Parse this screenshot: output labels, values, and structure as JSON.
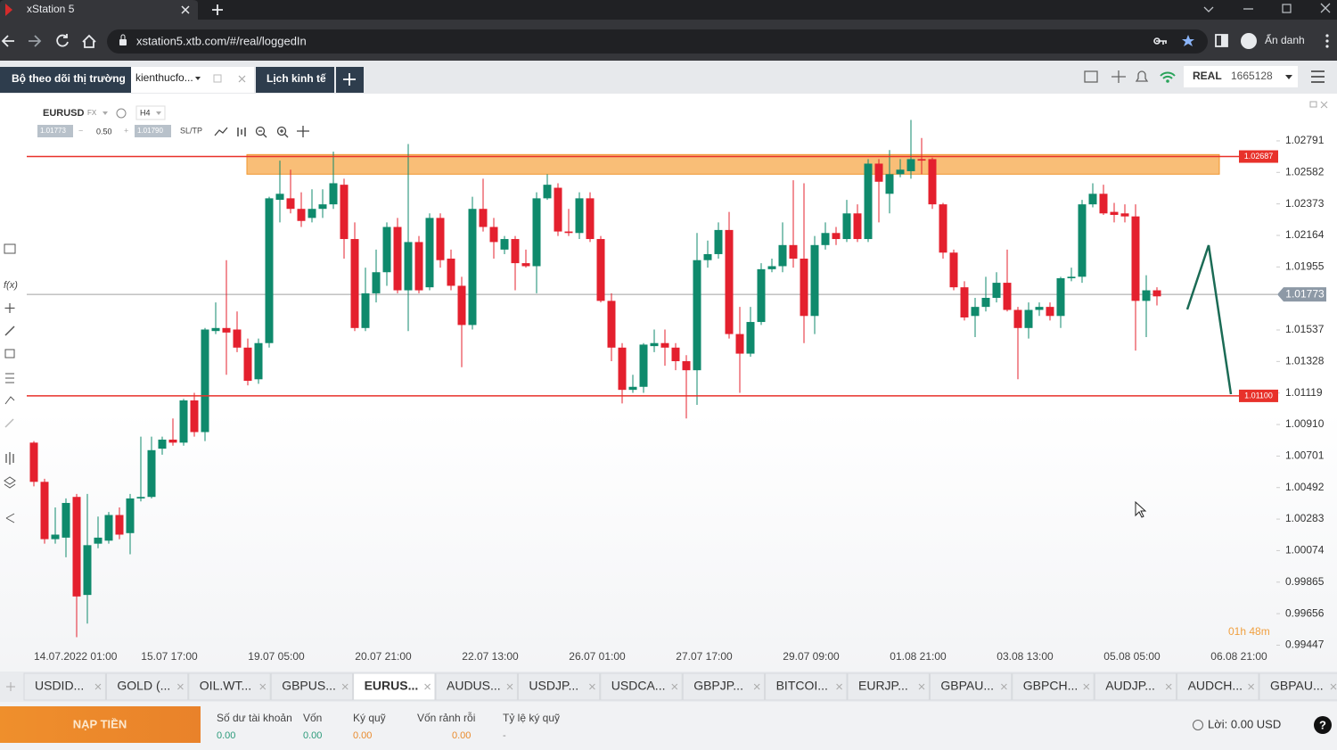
{
  "browser": {
    "tab_title": "xStation 5",
    "url": "xstation5.xtb.com/#/real/loggedIn",
    "profile": "Ẩn danh"
  },
  "app_tabs": [
    "Bộ theo dõi thị trường",
    "kienthucfo...",
    "Lịch kinh tế"
  ],
  "account": {
    "mode": "REAL",
    "number": "1665128"
  },
  "chart_header": {
    "symbol": "EURUSD",
    "market": "FX",
    "timeframe": "H4",
    "sell": "1.01773",
    "volume": "0.50",
    "buy": "1.01790",
    "sltp": "SL/TP"
  },
  "left_toolbar": {
    "fx": "f(x)"
  },
  "chart": {
    "type": "candlestick",
    "up_color": "#0f8a6c",
    "down_color": "#e4202e",
    "ylim": [
      0.9929,
      1.0311
    ],
    "yticks": [
      1.02791,
      1.02582,
      1.02373,
      1.02164,
      1.01955,
      1.01537,
      1.01328,
      1.01119,
      {
        "value": 1.0091,
        "label": "1.00910"
      },
      1.00701,
      1.00492,
      1.00283,
      1.00074,
      0.99865,
      0.99656,
      0.99447
    ],
    "x_labels": [
      "14.07.2022 01:00",
      "15.07 17:00",
      "19.07 05:00",
      "20.07 21:00",
      "22.07 13:00",
      "26.07 01:00",
      "27.07 17:00",
      "29.07 09:00",
      "01.08 21:00",
      "03.08 13:00",
      "05.08 05:00",
      "06.08 21:00"
    ],
    "resistance": 1.02687,
    "support": {
      "value": 1.011,
      "label": "1.01100"
    },
    "level_color": "#e8312a",
    "current_price": 1.01773,
    "zone": [
      1.0257,
      1.027
    ],
    "zone_color": "#f7a84a",
    "timer": "01h 48m",
    "candles": [
      [
        1.0079,
        1.008,
        1.005,
        1.0053
      ],
      [
        1.0053,
        1.0055,
        1.0012,
        1.0015
      ],
      [
        1.0015,
        1.0036,
        1.0012,
        1.0018
      ],
      [
        1.0016,
        1.0042,
        1.0003,
        1.0039
      ],
      [
        1.0043,
        1.0045,
        0.995,
        0.9977
      ],
      [
        0.9978,
        1.0045,
        0.9959,
        1.0011
      ],
      [
        1.0012,
        1.003,
        1.0009,
        1.0016
      ],
      [
        1.0014,
        1.0033,
        1.0012,
        1.0031
      ],
      [
        1.0031,
        1.0036,
        1.0015,
        1.0018
      ],
      [
        1.0019,
        1.0045,
        1.0005,
        1.0042
      ],
      [
        1.0042,
        1.0083,
        1.004,
        1.0043
      ],
      [
        1.0043,
        1.0083,
        1.0042,
        1.0074
      ],
      [
        1.0075,
        1.0083,
        1.0071,
        1.0081
      ],
      [
        1.0081,
        1.0095,
        1.0077,
        1.0079
      ],
      [
        1.0079,
        1.0108,
        1.0077,
        1.0107
      ],
      [
        1.0107,
        1.0112,
        1.0083,
        1.0086
      ],
      [
        1.0086,
        1.0155,
        1.008,
        1.0154
      ],
      [
        1.0153,
        1.0172,
        1.0151,
        1.0155
      ],
      [
        1.0155,
        1.02,
        1.0124,
        1.0152
      ],
      [
        1.0154,
        1.0166,
        1.0139,
        1.0142
      ],
      [
        1.0142,
        1.0148,
        1.0117,
        1.012
      ],
      [
        1.0121,
        1.0148,
        1.0118,
        1.0145
      ],
      [
        1.0145,
        1.0242,
        1.0142,
        1.0241
      ],
      [
        1.024,
        1.0266,
        1.0225,
        1.0244
      ],
      [
        1.0241,
        1.026,
        1.0231,
        1.0234
      ],
      [
        1.0234,
        1.0245,
        1.0222,
        1.0226
      ],
      [
        1.0228,
        1.0247,
        1.0225,
        1.0234
      ],
      [
        1.0234,
        1.0247,
        1.0228,
        1.0237
      ],
      [
        1.0237,
        1.0272,
        1.0234,
        1.0251
      ],
      [
        1.025,
        1.0254,
        1.0201,
        1.0214
      ],
      [
        1.0214,
        1.0225,
        1.0153,
        1.0155
      ],
      [
        1.0155,
        1.0195,
        1.0153,
        1.0178
      ],
      [
        1.0178,
        1.0207,
        1.0172,
        1.0192
      ],
      [
        1.0192,
        1.0225,
        1.0183,
        1.0222
      ],
      [
        1.0222,
        1.0228,
        1.0178,
        1.018
      ],
      [
        1.018,
        1.0277,
        1.0153,
        1.0212
      ],
      [
        1.0212,
        1.0216,
        1.0178,
        1.018
      ],
      [
        1.0182,
        1.0231,
        1.018,
        1.0228
      ],
      [
        1.0228,
        1.0231,
        1.0195,
        1.02
      ],
      [
        1.0201,
        1.0207,
        1.018,
        1.0183
      ],
      [
        1.0183,
        1.0189,
        1.0129,
        1.0157
      ],
      [
        1.0157,
        1.0242,
        1.0154,
        1.0234
      ],
      [
        1.0234,
        1.0254,
        1.0219,
        1.0222
      ],
      [
        1.0222,
        1.0228,
        1.0201,
        1.0212
      ],
      [
        1.0207,
        1.0216,
        1.0204,
        1.0214
      ],
      [
        1.0214,
        1.0216,
        1.018,
        1.0198
      ],
      [
        1.0198,
        1.0207,
        1.0195,
        1.0196
      ],
      [
        1.0196,
        1.0245,
        1.0178,
        1.0241
      ],
      [
        1.0241,
        1.0257,
        1.024,
        1.025
      ],
      [
        1.0248,
        1.0251,
        1.0216,
        1.0219
      ],
      [
        1.0219,
        1.0234,
        1.0216,
        1.0218
      ],
      [
        1.0218,
        1.0245,
        1.0214,
        1.0241
      ],
      [
        1.0241,
        1.0245,
        1.0212,
        1.0214
      ],
      [
        1.0214,
        1.0216,
        1.0172,
        1.0173
      ],
      [
        1.0173,
        1.0178,
        1.0133,
        1.0142
      ],
      [
        1.0142,
        1.0145,
        1.0105,
        1.0114
      ],
      [
        1.0114,
        1.0124,
        1.0112,
        1.0116
      ],
      [
        1.0116,
        1.0145,
        1.0112,
        1.0144
      ],
      [
        1.0143,
        1.0154,
        1.0139,
        1.0145
      ],
      [
        1.0145,
        1.0154,
        1.013,
        1.0142
      ],
      [
        1.0142,
        1.0145,
        1.0127,
        1.0133
      ],
      [
        1.0133,
        1.0137,
        1.0095,
        1.0127
      ],
      [
        1.0127,
        1.0218,
        1.0104,
        1.02
      ],
      [
        1.02,
        1.0213,
        1.0195,
        1.0204
      ],
      [
        1.0204,
        1.0225,
        1.0201,
        1.022
      ],
      [
        1.022,
        1.0232,
        1.0148,
        1.0151
      ],
      [
        1.0151,
        1.0169,
        1.0112,
        1.0138
      ],
      [
        1.0138,
        1.0169,
        1.0136,
        1.0159
      ],
      [
        1.0159,
        1.0198,
        1.0157,
        1.0194
      ],
      [
        1.0194,
        1.0201,
        1.0192,
        1.0196
      ],
      [
        1.0196,
        1.0225,
        1.0192,
        1.021
      ],
      [
        1.021,
        1.0253,
        1.0195,
        1.0201
      ],
      [
        1.0201,
        1.0251,
        1.0145,
        1.0163
      ],
      [
        1.0163,
        1.0216,
        1.0151,
        1.021
      ],
      [
        1.021,
        1.0225,
        1.0207,
        1.0218
      ],
      [
        1.0218,
        1.0222,
        1.021,
        1.0214
      ],
      [
        1.0214,
        1.024,
        1.0212,
        1.0231
      ],
      [
        1.0231,
        1.0237,
        1.0212,
        1.0214
      ],
      [
        1.0214,
        1.0267,
        1.0212,
        1.0264
      ],
      [
        1.0264,
        1.0267,
        1.0225,
        1.0252
      ],
      [
        1.0244,
        1.0273,
        1.0231,
        1.0257
      ],
      [
        1.0257,
        1.0267,
        1.0255,
        1.026
      ],
      [
        1.0259,
        1.0293,
        1.0254,
        1.0267
      ],
      [
        1.0267,
        1.0281,
        1.0257,
        1.0266
      ],
      [
        1.0267,
        1.0268,
        1.0234,
        1.0237
      ],
      [
        1.0237,
        1.0238,
        1.0201,
        1.0205
      ],
      [
        1.0205,
        1.0207,
        1.018,
        1.0182
      ],
      [
        1.0182,
        1.0186,
        1.016,
        1.0162
      ],
      [
        1.0163,
        1.0175,
        1.0149,
        1.0169
      ],
      [
        1.0169,
        1.0189,
        1.0166,
        1.0175
      ],
      [
        1.0175,
        1.0192,
        1.0172,
        1.0185
      ],
      [
        1.0185,
        1.0207,
        1.0166,
        1.0167
      ],
      [
        1.0167,
        1.0169,
        1.0121,
        1.0155
      ],
      [
        1.0155,
        1.0172,
        1.0148,
        1.0167
      ],
      [
        1.0167,
        1.0172,
        1.0163,
        1.0169
      ],
      [
        1.0169,
        1.0172,
        1.016,
        1.0163
      ],
      [
        1.0163,
        1.0189,
        1.0155,
        1.0188
      ],
      [
        1.0188,
        1.0195,
        1.0186,
        1.0189
      ],
      [
        1.0189,
        1.024,
        1.0185,
        1.0237
      ],
      [
        1.0237,
        1.0251,
        1.0235,
        1.0244
      ],
      [
        1.0244,
        1.025,
        1.023,
        1.0231
      ],
      [
        1.0232,
        1.0238,
        1.0225,
        1.023
      ],
      [
        1.0231,
        1.0237,
        1.0225,
        1.0229
      ],
      [
        1.0229,
        1.0237,
        1.014,
        1.0173
      ],
      [
        1.0173,
        1.019,
        1.0149,
        1.018
      ],
      [
        1.018,
        1.0182,
        1.017,
        1.0176
      ]
    ]
  },
  "instrument_tabs": [
    "USDID...",
    "GOLD (...",
    "OIL.WT...",
    "GBPUS...",
    "EURUS...",
    "AUDUS...",
    "USDJP...",
    "USDCA...",
    "GBPJP...",
    "BITCOI...",
    "EURJP...",
    "GBPAU...",
    "GBPCH...",
    "AUDJP...",
    "AUDCH...",
    "GBPAU..."
  ],
  "active_instrument": 4,
  "footer": {
    "deposit": "NẠP TIỀN",
    "fields": [
      {
        "label": "Số dư tài khoản",
        "value": "0.00"
      },
      {
        "label": "Vốn",
        "value": "0.00"
      },
      {
        "label": "Ký quỹ",
        "value": "0.00"
      },
      {
        "label": "Vốn rảnh rỗi",
        "value": "0.00"
      },
      {
        "label": "Tỷ lệ ký quỹ",
        "value": "-"
      }
    ],
    "profit": "Lời: 0.00 USD",
    "help": "?"
  }
}
